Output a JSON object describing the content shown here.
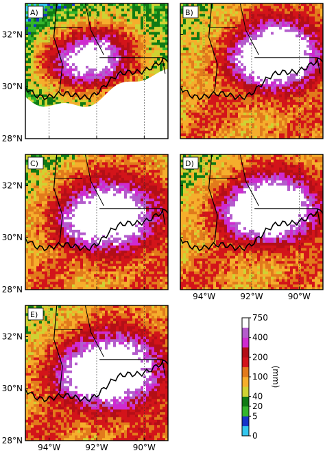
{
  "chart_data": {
    "type": "heatmap",
    "panels": [
      {
        "label": "A)",
        "y_tick_labels": true,
        "x_tick_labels": false,
        "has_mask": true
      },
      {
        "label": "B)",
        "y_tick_labels": false,
        "x_tick_labels": false,
        "has_mask": false
      },
      {
        "label": "C)",
        "y_tick_labels": true,
        "x_tick_labels": false,
        "has_mask": false
      },
      {
        "label": "D)",
        "y_tick_labels": false,
        "x_tick_labels": true,
        "has_mask": false
      },
      {
        "label": "E)",
        "y_tick_labels": true,
        "x_tick_labels": true,
        "has_mask": false
      }
    ],
    "x_ticks": [
      {
        "value": -94,
        "label": "94°W"
      },
      {
        "value": -92,
        "label": "92°W"
      },
      {
        "value": -90,
        "label": "90°W"
      }
    ],
    "y_ticks": [
      {
        "value": 28,
        "label": "28°N"
      },
      {
        "value": 30,
        "label": "30°N"
      },
      {
        "value": 32,
        "label": "32°N"
      }
    ],
    "xlim": [
      -95,
      -89
    ],
    "ylim": [
      28,
      33.2
    ],
    "colorbar": {
      "label": "(mm)",
      "ticks": [
        "0",
        "5",
        "20",
        "40",
        "100",
        "200",
        "400",
        "750"
      ],
      "colors": [
        "#33c6ee",
        "#1533c9",
        "#33b52c",
        "#0f7a14",
        "#cfd233",
        "#f5ae2c",
        "#e27a1c",
        "#d3141a",
        "#b30f17",
        "#cf2ad0",
        "#b45ccc",
        "#ffffff"
      ]
    }
  }
}
